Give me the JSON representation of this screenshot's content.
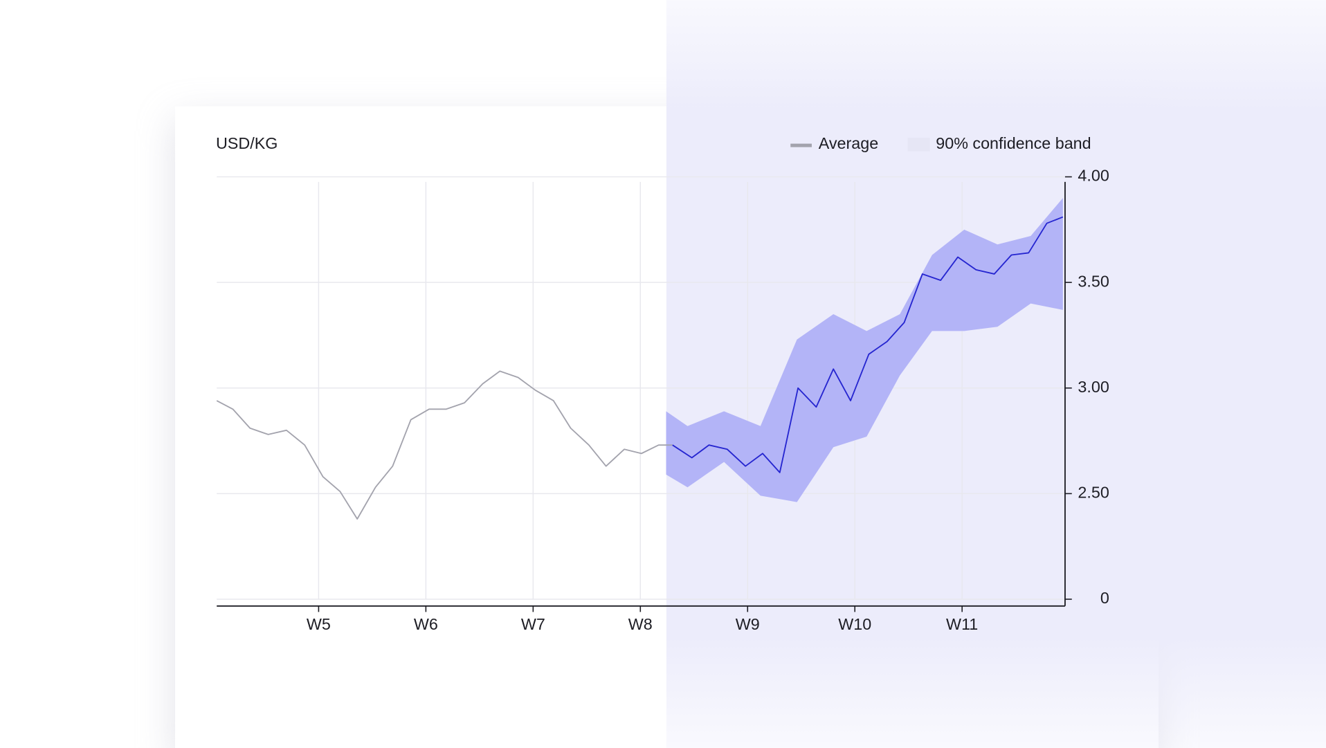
{
  "chart_data": {
    "type": "line",
    "title": "USD/KG",
    "xlim": [
      4.05,
      11.96
    ],
    "xticks": [
      {
        "value": 5,
        "label": "W5"
      },
      {
        "value": 6,
        "label": "W6"
      },
      {
        "value": 7,
        "label": "W7"
      },
      {
        "value": 8,
        "label": "W8"
      },
      {
        "value": 9,
        "label": "W9"
      },
      {
        "value": 10,
        "label": "W10"
      },
      {
        "value": 11,
        "label": "W11"
      }
    ],
    "ylim": [
      0,
      4
    ],
    "ybreak": [
      0,
      2
    ],
    "yticks": [
      {
        "value": 0,
        "label": "0"
      },
      {
        "value": 2.5,
        "label": "2.50"
      },
      {
        "value": 3,
        "label": "3.00"
      },
      {
        "value": 3.5,
        "label": "3.50"
      },
      {
        "value": 4,
        "label": "4.00"
      }
    ],
    "grid": true,
    "legend": "top-right",
    "series": [
      {
        "name": "Average",
        "color": "#a3a3ad",
        "x": [
          4.05,
          4.2,
          4.36,
          4.53,
          4.7,
          4.87,
          5.04,
          5.2,
          5.36,
          5.53,
          5.69,
          5.86,
          6.03,
          6.19,
          6.36,
          6.53,
          6.69,
          6.86,
          7.02,
          7.19,
          7.35,
          7.52,
          7.68,
          7.85,
          8.01,
          8.17,
          8.3
        ],
        "values": [
          2.94,
          2.9,
          2.81,
          2.78,
          2.8,
          2.73,
          2.58,
          2.51,
          2.38,
          2.53,
          2.63,
          2.85,
          2.9,
          2.9,
          2.93,
          3.02,
          3.08,
          3.05,
          2.99,
          2.94,
          2.81,
          2.73,
          2.63,
          2.71,
          2.69,
          2.73,
          2.73
        ]
      },
      {
        "color": "#2525d0",
        "x": [
          8.3,
          8.48,
          8.64,
          8.81,
          8.98,
          9.14,
          9.3,
          9.47,
          9.64,
          9.8,
          9.96,
          10.13,
          10.3,
          10.46,
          10.63,
          10.8,
          10.96,
          11.13,
          11.3,
          11.46,
          11.62,
          11.79,
          11.94
        ],
        "values": [
          2.73,
          2.67,
          2.73,
          2.71,
          2.63,
          2.69,
          2.6,
          3.0,
          2.91,
          3.09,
          2.94,
          3.16,
          3.22,
          3.31,
          3.54,
          3.51,
          3.62,
          3.56,
          3.54,
          3.63,
          3.64,
          3.78,
          3.81
        ]
      }
    ],
    "band": {
      "name": "90% confidence band",
      "color": "#b3b4f7",
      "legend_color": "#e6e6f5",
      "x": [
        8.24,
        8.44,
        8.78,
        9.12,
        9.46,
        9.8,
        10.11,
        10.42,
        10.72,
        11.02,
        11.33,
        11.64,
        11.94
      ],
      "upper": [
        2.89,
        2.82,
        2.89,
        2.82,
        3.23,
        3.35,
        3.27,
        3.35,
        3.63,
        3.75,
        3.68,
        3.72,
        3.9
      ],
      "lower": [
        2.59,
        2.53,
        2.65,
        2.49,
        2.46,
        2.72,
        2.77,
        3.06,
        3.27,
        3.27,
        3.29,
        3.4,
        3.37
      ]
    }
  }
}
